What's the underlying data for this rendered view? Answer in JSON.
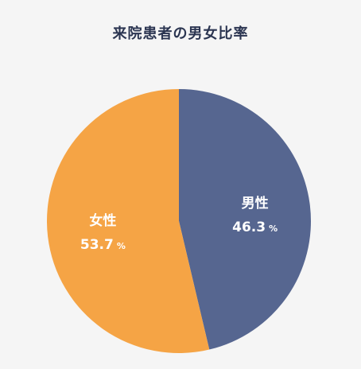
{
  "chart_data": {
    "type": "pie",
    "title": "来院患者の男女比率",
    "categories": [
      "男性",
      "女性"
    ],
    "values": [
      46.3,
      53.7
    ],
    "unit": "%",
    "colors": [
      "#566690",
      "#f5a445"
    ],
    "start_angle_deg": 0,
    "direction": "clockwise",
    "legend": "none"
  }
}
